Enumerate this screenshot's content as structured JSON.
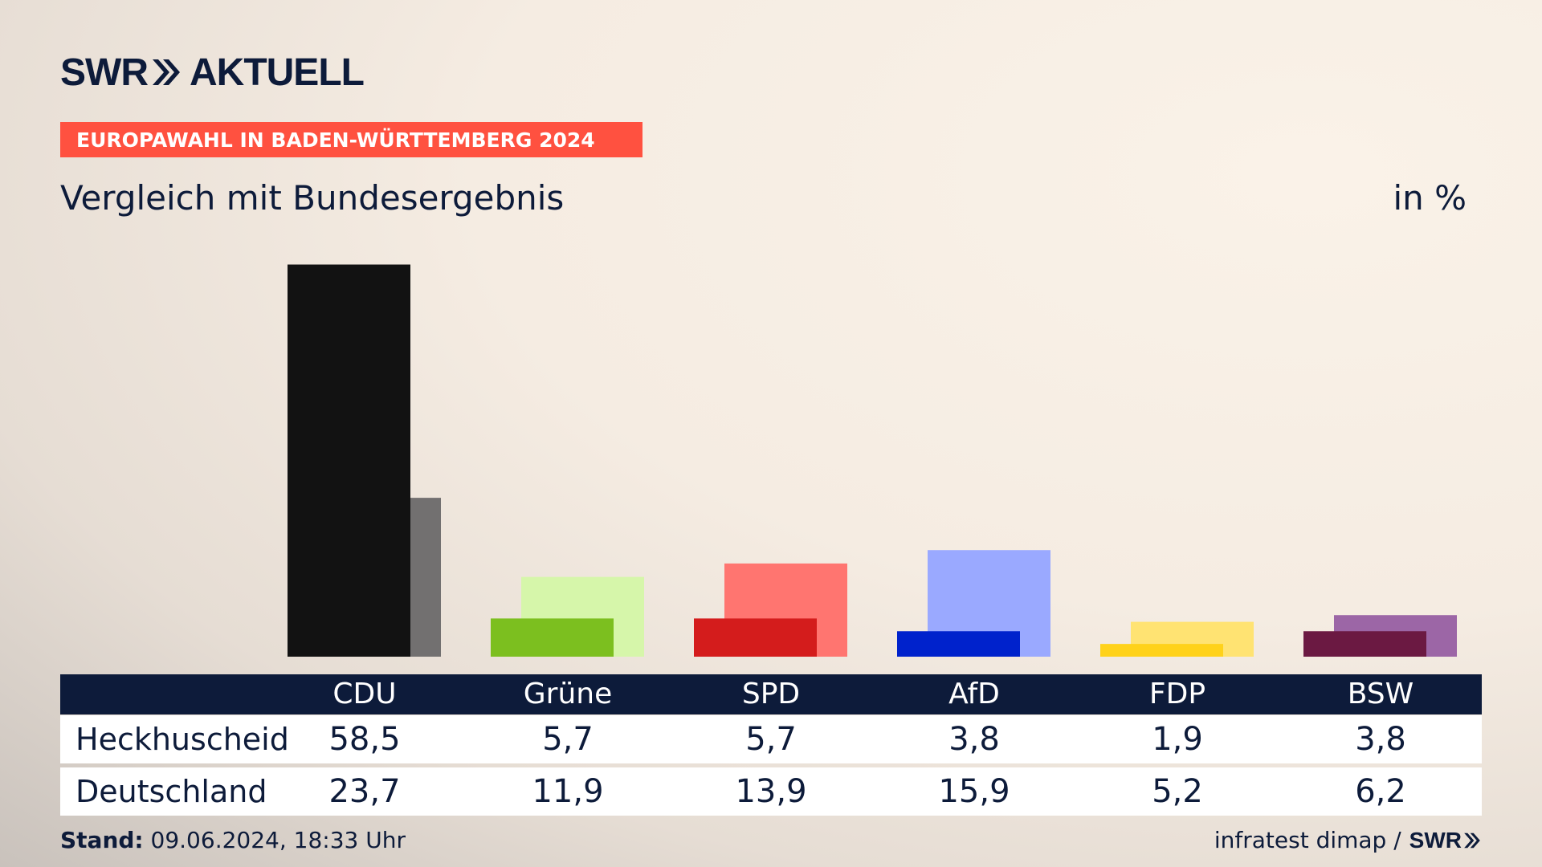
{
  "header": {
    "logo_brand": "SWR",
    "logo_product": "AKTUELL",
    "kicker": "EUROPAWAHL IN BADEN-WÜRTTEMBERG 2024",
    "subtitle": "Vergleich mit Bundesergebnis",
    "unit": "in %"
  },
  "table": {
    "rows": [
      {
        "label": "Heckhuscheid",
        "values": [
          "58,5",
          "5,7",
          "5,7",
          "3,8",
          "1,9",
          "3,8"
        ]
      },
      {
        "label": "Deutschland",
        "values": [
          "23,7",
          "11,9",
          "13,9",
          "15,9",
          "5,2",
          "6,2"
        ]
      }
    ]
  },
  "footer": {
    "stand_label": "Stand:",
    "stand_value": "09.06.2024, 18:33 Uhr",
    "source": "infratest dimap /",
    "source_brand": "SWR"
  },
  "colors": {
    "CDU": [
      "#121212",
      "#727070"
    ],
    "Grüne": [
      "#7cbf1f",
      "#d6f6aa"
    ],
    "SPD": [
      "#d41c1c",
      "#ff7570"
    ],
    "AfD": [
      "#0022cc",
      "#9aa9ff"
    ],
    "FDP": [
      "#ffd21a",
      "#ffe372"
    ],
    "BSW": [
      "#6b1942",
      "#9c66a6"
    ]
  },
  "chart_data": {
    "type": "bar",
    "categories": [
      "CDU",
      "Grüne",
      "SPD",
      "AfD",
      "FDP",
      "BSW"
    ],
    "series": [
      {
        "name": "Heckhuscheid",
        "values": [
          58.5,
          5.7,
          5.7,
          3.8,
          1.9,
          3.8
        ]
      },
      {
        "name": "Deutschland",
        "values": [
          23.7,
          11.9,
          13.9,
          15.9,
          5.2,
          6.2
        ]
      }
    ],
    "title": "Vergleich mit Bundesergebnis",
    "ylabel": "in %",
    "grid": false
  }
}
